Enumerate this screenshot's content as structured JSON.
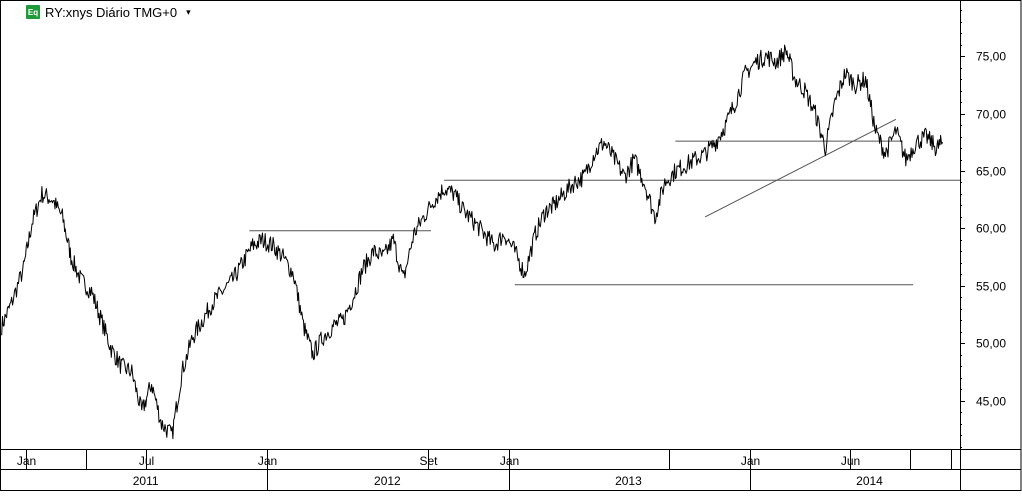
{
  "header": {
    "badge": "Eq",
    "symbol": "RY:xnys Diário TMG+0",
    "dropdown_glyph": "▾"
  },
  "chart_data": {
    "type": "line",
    "title": "RY:xnys Diário TMG+0",
    "xlabel": "",
    "ylabel": "",
    "ylim": [
      40.8,
      79.8
    ],
    "xlim": [
      "2010-11-24",
      "2014-11-15"
    ],
    "y_ticks": [
      45,
      50,
      55,
      60,
      65,
      70,
      75
    ],
    "y_tick_labels": [
      "45,00",
      "50,00",
      "55,00",
      "60,00",
      "65,00",
      "70,00",
      "75,00"
    ],
    "grid": false,
    "month_ticks": [
      {
        "date": "2011-01-01",
        "label": "Jan"
      },
      {
        "date": "2011-07-01",
        "label": "Jul"
      },
      {
        "date": "2012-01-01",
        "label": "Jan"
      },
      {
        "date": "2012-09-01",
        "label": "Set"
      },
      {
        "date": "2013-01-01",
        "label": "Jan"
      },
      {
        "date": "2014-01-01",
        "label": "Jan"
      },
      {
        "date": "2014-06-01",
        "label": "Jun"
      }
    ],
    "separators": [
      "2011-04-01",
      "2012-09-01",
      "2013-09-01",
      "2014-09-01",
      "2014-11-01"
    ],
    "year_ticks": [
      {
        "date": "2011-07-01",
        "label": "2011"
      },
      {
        "date": "2012-07-01",
        "label": "2012"
      },
      {
        "date": "2013-07-01",
        "label": "2013"
      },
      {
        "date": "2014-07-01",
        "label": "2014"
      }
    ],
    "year_separators": [
      "2012-01-01",
      "2013-01-01",
      "2014-01-01"
    ],
    "series": [
      {
        "color": "#000000",
        "x": [
          "2010-11-25",
          "2010-12-10",
          "2010-12-28",
          "2011-01-10",
          "2011-01-25",
          "2011-02-10",
          "2011-02-25",
          "2011-03-10",
          "2011-03-25",
          "2011-04-10",
          "2011-04-25",
          "2011-05-10",
          "2011-05-25",
          "2011-06-10",
          "2011-06-25",
          "2011-07-10",
          "2011-07-25",
          "2011-08-10",
          "2011-08-25",
          "2011-09-10",
          "2011-09-25",
          "2011-10-10",
          "2011-10-25",
          "2011-11-10",
          "2011-11-25",
          "2011-12-10",
          "2011-12-25",
          "2012-01-10",
          "2012-01-25",
          "2012-02-10",
          "2012-02-25",
          "2012-03-10",
          "2012-03-25",
          "2012-04-10",
          "2012-04-25",
          "2012-05-10",
          "2012-05-25",
          "2012-06-10",
          "2012-06-25",
          "2012-07-10",
          "2012-07-25",
          "2012-08-10",
          "2012-08-25",
          "2012-09-10",
          "2012-09-25",
          "2012-10-10",
          "2012-10-25",
          "2012-11-10",
          "2012-11-25",
          "2012-12-10",
          "2012-12-25",
          "2013-01-10",
          "2013-01-25",
          "2013-02-10",
          "2013-02-25",
          "2013-03-10",
          "2013-03-25",
          "2013-04-10",
          "2013-04-25",
          "2013-05-10",
          "2013-05-25",
          "2013-06-10",
          "2013-06-25",
          "2013-07-10",
          "2013-07-25",
          "2013-08-10",
          "2013-08-25",
          "2013-09-10",
          "2013-09-25",
          "2013-10-10",
          "2013-10-25",
          "2013-11-10",
          "2013-11-25",
          "2013-12-10",
          "2013-12-25",
          "2014-01-10",
          "2014-01-25",
          "2014-02-10",
          "2014-02-25",
          "2014-03-10",
          "2014-03-25",
          "2014-04-10",
          "2014-04-25",
          "2014-05-10",
          "2014-05-25",
          "2014-06-10",
          "2014-06-25",
          "2014-07-10",
          "2014-07-25",
          "2014-08-10",
          "2014-08-25",
          "2014-09-10",
          "2014-09-25",
          "2014-10-10",
          "2014-10-20"
        ],
        "values": [
          51.5,
          53.5,
          56.5,
          60.5,
          63.0,
          62.5,
          61.0,
          57.5,
          55.5,
          54.5,
          52.0,
          49.5,
          48.0,
          47.5,
          44.0,
          46.5,
          43.0,
          42.0,
          47.5,
          50.5,
          52.0,
          53.5,
          54.5,
          55.5,
          57.0,
          58.5,
          59.0,
          58.5,
          57.5,
          56.0,
          51.5,
          49.0,
          50.5,
          51.5,
          52.0,
          54.0,
          56.5,
          58.0,
          57.5,
          59.0,
          55.5,
          59.5,
          61.0,
          62.5,
          63.5,
          63.0,
          61.5,
          60.5,
          59.5,
          58.5,
          59.5,
          58.0,
          56.0,
          59.5,
          61.5,
          62.0,
          63.0,
          64.0,
          64.5,
          66.5,
          67.5,
          66.0,
          64.5,
          66.0,
          64.0,
          61.0,
          64.0,
          65.0,
          65.5,
          66.0,
          66.5,
          67.5,
          69.0,
          71.0,
          73.5,
          74.5,
          75.0,
          74.5,
          75.5,
          73.0,
          72.0,
          70.0,
          67.0,
          71.0,
          73.5,
          72.5,
          73.0,
          68.5,
          66.5,
          68.5,
          66.0,
          67.5,
          68.0,
          67.0,
          67.5
        ]
      }
    ],
    "annotations": [
      {
        "kind": "hline",
        "y": 59.8,
        "x1": "2011-12-05",
        "x2": "2012-09-05"
      },
      {
        "kind": "hline",
        "y": 64.2,
        "x1": "2012-09-25",
        "x2": "2014-11-15"
      },
      {
        "kind": "hline",
        "y": 55.1,
        "x1": "2013-01-10",
        "x2": "2014-09-05"
      },
      {
        "kind": "hline",
        "y": 67.6,
        "x1": "2013-09-10",
        "x2": "2014-08-20"
      },
      {
        "kind": "trendline",
        "x1": "2013-10-25",
        "y1": 61.0,
        "x2": "2014-08-10",
        "y2": 69.5
      }
    ]
  }
}
